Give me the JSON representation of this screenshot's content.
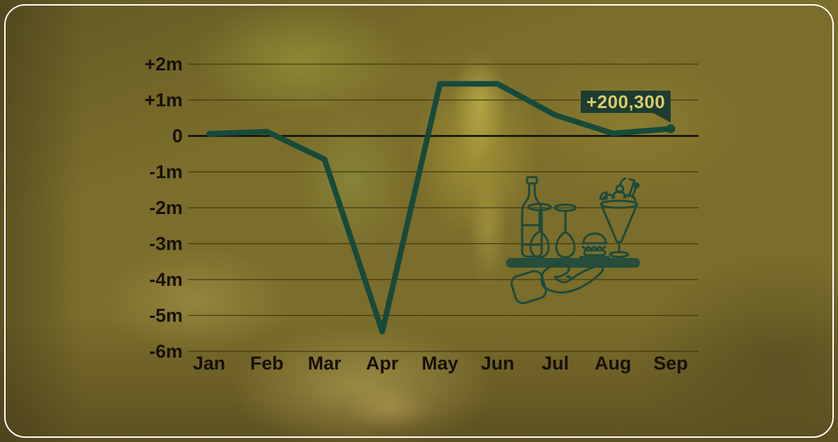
{
  "colors": {
    "line": "#174a3b",
    "grid": "#3a3208",
    "zero_line": "#0d0b02",
    "axis_text": "#171103",
    "badge_bg": "#1e3c31",
    "badge_text": "#dbcc68",
    "icon": "#1d4a3c",
    "frame_border": "#ffffff",
    "background_base": "#7b6d2b"
  },
  "icons": {
    "tray_icon": "hand-serving-tray-with-wine-bottle-glasses-burger-cocktail"
  },
  "chart_data": {
    "type": "line",
    "title": "",
    "xlabel": "",
    "ylabel": "",
    "categories": [
      "Jan",
      "Feb",
      "Mar",
      "Apr",
      "May",
      "Jun",
      "Jul",
      "Aug",
      "Sep"
    ],
    "values": [
      0.06,
      0.12,
      -0.65,
      -5.45,
      1.45,
      1.45,
      0.58,
      0.07,
      0.2003
    ],
    "ytick_labels": [
      "+2m",
      "+1m",
      "0",
      "-1m",
      "-2m",
      "-3m",
      "-4m",
      "-5m",
      "-6m"
    ],
    "ytick_values": [
      2,
      1,
      0,
      -1,
      -2,
      -3,
      -4,
      -5,
      -6
    ],
    "ylim": [
      -6,
      2
    ],
    "grid": true,
    "legend": false,
    "annotation": {
      "label": "+200,300",
      "category": "Sep",
      "value_millions": 0.2003
    }
  }
}
